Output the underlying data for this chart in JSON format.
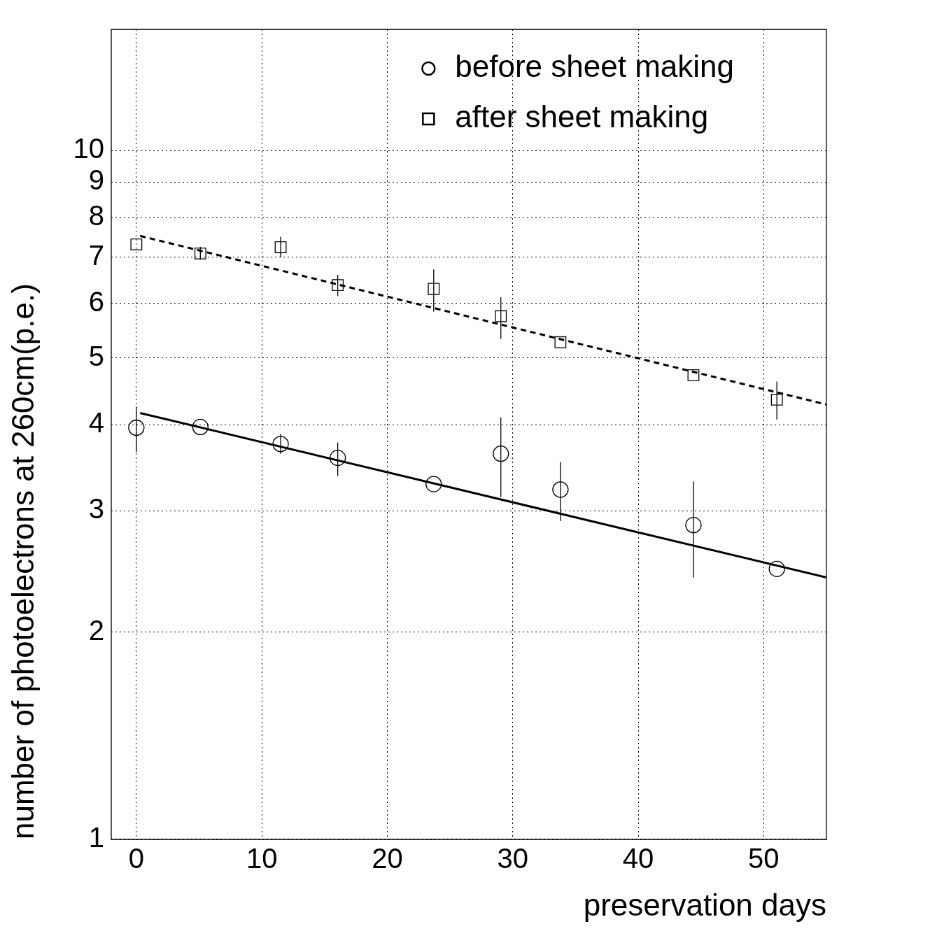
{
  "chart_data": {
    "type": "scatter",
    "xlabel": "preservation days",
    "ylabel": "number of photoelectrons at 260cm(p.e.)",
    "xlim": [
      -2,
      55
    ],
    "xticks": [
      0,
      10,
      20,
      30,
      40,
      50
    ],
    "ylim": [
      1,
      15
    ],
    "yticks": [
      1,
      2,
      3,
      4,
      5,
      6,
      7,
      8,
      9,
      10
    ],
    "log": "y",
    "grid": true,
    "legend": "top right",
    "series": [
      {
        "name": "before sheet making",
        "color": "#000000",
        "marker": "circle",
        "x": [
          0,
          5.1,
          11.5,
          16.05,
          23.7,
          29.05,
          33.8,
          44.4,
          51.05
        ],
        "values": [
          3.96,
          3.97,
          3.75,
          3.58,
          3.28,
          3.63,
          3.22,
          2.86,
          2.47
        ],
        "errors": [
          [
            3.65,
            4.25
          ],
          null,
          [
            3.63,
            3.88
          ],
          [
            3.37,
            3.77
          ],
          null,
          [
            3.14,
            4.1
          ],
          [
            2.9,
            3.53
          ],
          [
            2.4,
            3.31
          ],
          null
        ]
      },
      {
        "name": "after sheet making",
        "color": "#000000",
        "marker": "square",
        "x": [
          0,
          5.1,
          11.5,
          16.05,
          23.7,
          29.05,
          33.8,
          44.4,
          51.05
        ],
        "values": [
          7.31,
          7.09,
          7.24,
          6.38,
          6.3,
          5.75,
          5.27,
          4.72,
          4.35
        ],
        "errors": [
          null,
          [
            6.95,
            7.25
          ],
          [
            7.0,
            7.5
          ],
          [
            6.15,
            6.6
          ],
          [
            5.84,
            6.72
          ],
          [
            5.33,
            6.13
          ],
          null,
          null,
          [
            4.07,
            4.62
          ]
        ]
      },
      {
        "type": "line",
        "color": "#000000",
        "marker": "none",
        "line_style": "solid",
        "x": [
          0.3,
          55
        ],
        "values": [
          4.16,
          2.4
        ]
      },
      {
        "type": "line",
        "color": "#000000",
        "marker": "none",
        "line_style": "dashed",
        "x": [
          0.3,
          55
        ],
        "values": [
          7.52,
          4.28
        ]
      }
    ]
  }
}
